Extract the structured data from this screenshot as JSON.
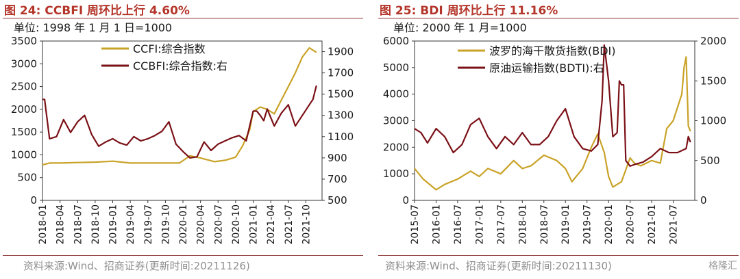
{
  "left": {
    "title": "图 24:  CCBFI 周环比上行 4.60%",
    "unit": "单位:  1998 年 1 月 1 日=1000",
    "source": "资料来源:Wind、招商证券(更新时间:20211126)"
  },
  "right": {
    "title": "图 25:  BDI 周环比上行 11.16%",
    "unit": "单位:  2000 年 1 月=1000",
    "source": "资料来源:Wind、招商证券(更新时间:20211130)",
    "watermark": "格隆汇"
  },
  "chart_data": [
    {
      "type": "line",
      "title": "图 24:  CCBFI 周环比上行 4.60%",
      "unit": "单位:  1998 年 1 月 1 日=1000",
      "x_ticks": [
        "2018-01",
        "2018-04",
        "2018-07",
        "2018-10",
        "2019-01",
        "2019-04",
        "2019-07",
        "2019-10",
        "2020-01",
        "2020-04",
        "2020-07",
        "2020-10",
        "2021-01",
        "2021-04",
        "2021-07",
        "2021-10"
      ],
      "y_left": {
        "min": 0,
        "max": 3500,
        "ticks": [
          0,
          500,
          1000,
          1500,
          2000,
          2500,
          3000,
          3500
        ]
      },
      "y_right": {
        "min": 500,
        "max": 2000,
        "ticks": [
          500,
          700,
          900,
          1100,
          1300,
          1500,
          1700,
          1900
        ]
      },
      "legend_placement": "top-center",
      "grid": false,
      "series": [
        {
          "name": "CCFI:综合指数",
          "axis": "left",
          "color": "#c9a227",
          "x": [
            2018.0,
            2018.1,
            2018.25,
            2018.5,
            2018.75,
            2019.0,
            2019.25,
            2019.5,
            2019.75,
            2019.95,
            2020.1,
            2020.25,
            2020.45,
            2020.6,
            2020.75,
            2020.85,
            2020.95,
            2021.0,
            2021.1,
            2021.2,
            2021.3,
            2021.4,
            2021.5,
            2021.6,
            2021.7,
            2021.8,
            2021.85,
            2021.9
          ],
          "values": [
            780,
            820,
            820,
            830,
            840,
            860,
            820,
            820,
            820,
            820,
            980,
            930,
            850,
            880,
            950,
            1200,
            1550,
            1950,
            2050,
            2000,
            1900,
            2200,
            2500,
            2800,
            3150,
            3350,
            3300,
            3250
          ]
        },
        {
          "name": "CCBFI:综合指数:右",
          "axis": "right",
          "color": "#7a1016",
          "x": [
            2018.0,
            2018.03,
            2018.1,
            2018.2,
            2018.3,
            2018.4,
            2018.5,
            2018.6,
            2018.7,
            2018.8,
            2018.9,
            2019.0,
            2019.1,
            2019.2,
            2019.3,
            2019.4,
            2019.5,
            2019.6,
            2019.7,
            2019.8,
            2019.9,
            2020.0,
            2020.1,
            2020.2,
            2020.3,
            2020.4,
            2020.5,
            2020.6,
            2020.7,
            2020.8,
            2020.9,
            2020.95,
            2021.0,
            2021.05,
            2021.1,
            2021.15,
            2021.2,
            2021.3,
            2021.4,
            2021.5,
            2021.6,
            2021.7,
            2021.8,
            2021.85,
            2021.9
          ],
          "values": [
            1450,
            1450,
            1080,
            1100,
            1260,
            1140,
            1240,
            1300,
            1120,
            1010,
            1050,
            1080,
            1040,
            1020,
            1100,
            1060,
            1080,
            1110,
            1150,
            1240,
            1030,
            960,
            900,
            910,
            1050,
            970,
            1030,
            1060,
            1090,
            1110,
            1060,
            1200,
            1340,
            1340,
            1300,
            1250,
            1360,
            1200,
            1320,
            1400,
            1200,
            1300,
            1400,
            1450,
            1580
          ]
        }
      ]
    },
    {
      "type": "line",
      "title": "图 25:  BDI 周环比上行 11.16%",
      "unit": "单位:  2000 年 1 月=1000",
      "x_ticks": [
        "2015-07",
        "2016-01",
        "2016-07",
        "2017-01",
        "2017-07",
        "2018-01",
        "2018-07",
        "2019-01",
        "2019-07",
        "2020-01",
        "2020-07",
        "2021-01",
        "2021-07"
      ],
      "y_left": {
        "min": 0,
        "max": 6000,
        "ticks": [
          0,
          1000,
          2000,
          3000,
          4000,
          5000,
          6000
        ]
      },
      "y_right": {
        "min": 0,
        "max": 2000,
        "ticks": [
          0,
          500,
          1000,
          1500,
          2000
        ]
      },
      "legend_placement": "top-center",
      "grid": false,
      "series": [
        {
          "name": "波罗的海干散货指数(BDI)",
          "axis": "left",
          "color": "#c9a227",
          "x": [
            2015.5,
            2015.7,
            2016.0,
            2016.2,
            2016.5,
            2016.8,
            2017.0,
            2017.2,
            2017.5,
            2017.8,
            2018.0,
            2018.2,
            2018.5,
            2018.8,
            2019.0,
            2019.15,
            2019.4,
            2019.6,
            2019.75,
            2019.9,
            2020.0,
            2020.1,
            2020.3,
            2020.5,
            2020.6,
            2020.75,
            2021.0,
            2021.2,
            2021.35,
            2021.5,
            2021.6,
            2021.7,
            2021.75,
            2021.8,
            2021.85,
            2021.9
          ],
          "values": [
            1200,
            800,
            400,
            600,
            800,
            1100,
            900,
            1200,
            1000,
            1500,
            1200,
            1300,
            1700,
            1500,
            1200,
            700,
            1200,
            2000,
            2500,
            1800,
            900,
            500,
            700,
            1600,
            1400,
            1300,
            1500,
            1400,
            2700,
            3000,
            3500,
            4000,
            5000,
            5400,
            2800,
            2600
          ]
        },
        {
          "name": "原油运输指数(BDTI):右",
          "axis": "right",
          "color": "#7a1016",
          "x": [
            2015.5,
            2015.65,
            2015.8,
            2016.0,
            2016.2,
            2016.4,
            2016.6,
            2016.8,
            2017.0,
            2017.2,
            2017.4,
            2017.6,
            2017.8,
            2018.0,
            2018.2,
            2018.4,
            2018.6,
            2018.8,
            2019.0,
            2019.2,
            2019.4,
            2019.6,
            2019.75,
            2019.85,
            2019.9,
            2020.0,
            2020.1,
            2020.2,
            2020.25,
            2020.3,
            2020.35,
            2020.4,
            2020.5,
            2020.6,
            2020.8,
            2021.0,
            2021.2,
            2021.4,
            2021.6,
            2021.8,
            2021.85,
            2021.9
          ],
          "values": [
            900,
            850,
            720,
            900,
            800,
            600,
            700,
            950,
            1030,
            800,
            650,
            800,
            700,
            850,
            700,
            700,
            800,
            1000,
            1150,
            800,
            650,
            620,
            700,
            1250,
            1950,
            1500,
            800,
            850,
            1500,
            1450,
            1450,
            500,
            430,
            450,
            480,
            550,
            650,
            600,
            600,
            650,
            800,
            730
          ]
        }
      ]
    }
  ]
}
